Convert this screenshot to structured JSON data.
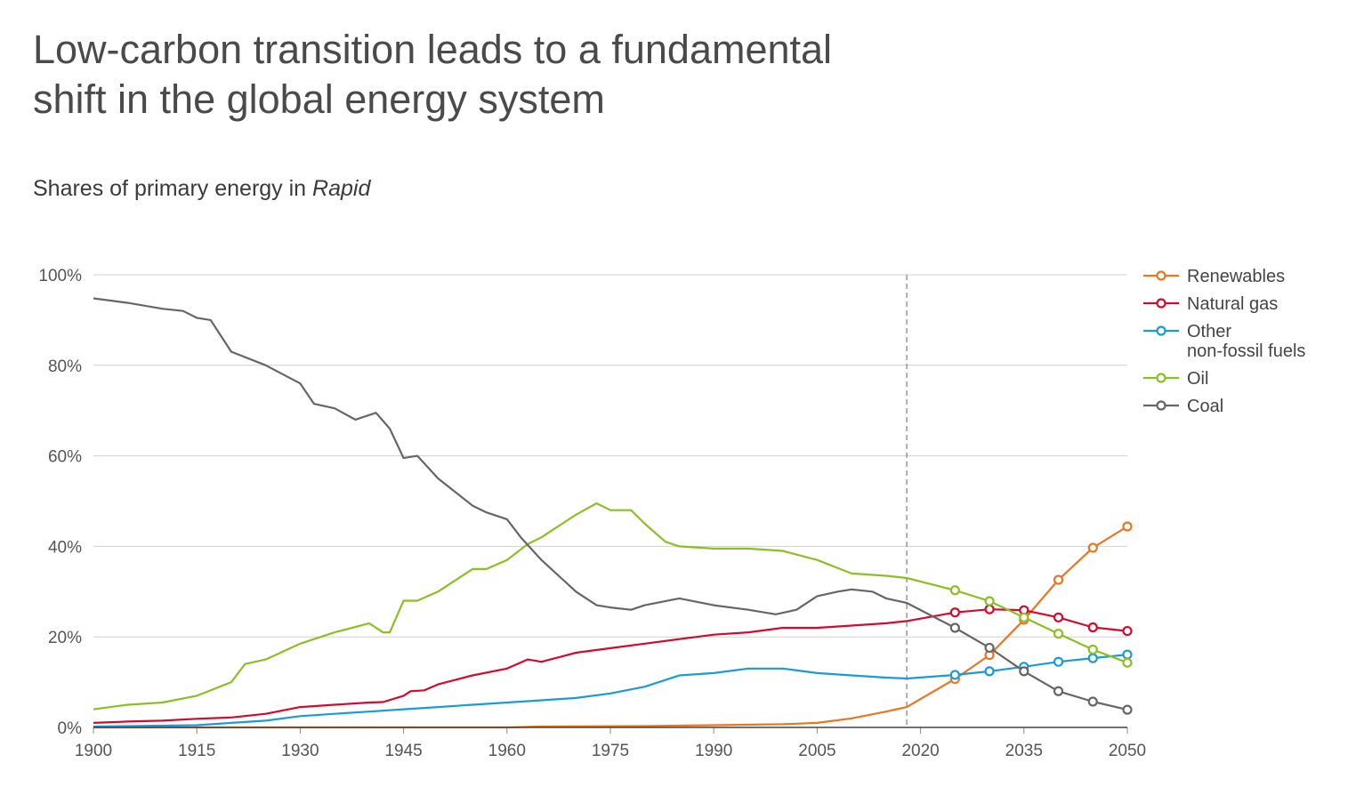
{
  "title": {
    "line1": "Low-carbon transition leads to a fundamental",
    "line2": "shift in the global energy system"
  },
  "subtitle": {
    "text": "Shares of primary energy in ",
    "italic": "Rapid"
  },
  "chart_data": {
    "type": "line",
    "xlim": [
      1900,
      2050
    ],
    "ylim": [
      0,
      100
    ],
    "x_ticks": [
      "1900",
      "1915",
      "1930",
      "1945",
      "1960",
      "1975",
      "1990",
      "2005",
      "2020",
      "2035",
      "2050"
    ],
    "y_ticks": [
      "0%",
      "20%",
      "40%",
      "60%",
      "80%",
      "100%"
    ],
    "grid": true,
    "legend_position": "right",
    "reference_line_x": 2018,
    "projection_markers_x": [
      2025,
      2030,
      2035,
      2040,
      2045,
      2050
    ],
    "series": [
      {
        "name": "Renewables",
        "legend": [
          "Renewables"
        ],
        "color": "#e87722",
        "points": [
          [
            1900,
            0
          ],
          [
            1960,
            0
          ],
          [
            1965,
            0.2
          ],
          [
            1980,
            0.3
          ],
          [
            1990,
            0.5
          ],
          [
            2000,
            0.7
          ],
          [
            2005,
            1
          ],
          [
            2010,
            2
          ],
          [
            2015,
            3.5
          ],
          [
            2018,
            4.5
          ],
          [
            2025,
            10.7
          ],
          [
            2030,
            16
          ],
          [
            2035,
            23.8
          ],
          [
            2040,
            32.6
          ],
          [
            2045,
            39.7
          ],
          [
            2050,
            44.4
          ]
        ]
      },
      {
        "name": "Natural gas",
        "legend": [
          "Natural gas"
        ],
        "color": "#d10a2e",
        "points": [
          [
            1900,
            1
          ],
          [
            1905,
            1.3
          ],
          [
            1910,
            1.5
          ],
          [
            1915,
            1.9
          ],
          [
            1920,
            2.2
          ],
          [
            1925,
            3
          ],
          [
            1930,
            4.5
          ],
          [
            1935,
            5
          ],
          [
            1940,
            5.5
          ],
          [
            1942,
            5.6
          ],
          [
            1945,
            7
          ],
          [
            1946,
            8
          ],
          [
            1948,
            8.2
          ],
          [
            1950,
            9.5
          ],
          [
            1955,
            11.5
          ],
          [
            1960,
            13
          ],
          [
            1963,
            15
          ],
          [
            1965,
            14.5
          ],
          [
            1970,
            16.5
          ],
          [
            1975,
            17.5
          ],
          [
            1980,
            18.5
          ],
          [
            1985,
            19.5
          ],
          [
            1990,
            20.5
          ],
          [
            1995,
            21
          ],
          [
            2000,
            22
          ],
          [
            2005,
            22
          ],
          [
            2010,
            22.5
          ],
          [
            2015,
            23
          ],
          [
            2018,
            23.5
          ],
          [
            2025,
            25.4
          ],
          [
            2030,
            26.1
          ],
          [
            2035,
            25.9
          ],
          [
            2040,
            24.3
          ],
          [
            2045,
            22.1
          ],
          [
            2050,
            21.3
          ]
        ]
      },
      {
        "name": "Other non-fossil fuels",
        "legend": [
          "Other",
          "non-fossil fuels"
        ],
        "color": "#1c9ad6",
        "points": [
          [
            1900,
            0.2
          ],
          [
            1915,
            0.5
          ],
          [
            1920,
            1
          ],
          [
            1925,
            1.5
          ],
          [
            1930,
            2.5
          ],
          [
            1935,
            3
          ],
          [
            1940,
            3.5
          ],
          [
            1945,
            4
          ],
          [
            1950,
            4.5
          ],
          [
            1955,
            5
          ],
          [
            1960,
            5.5
          ],
          [
            1965,
            6
          ],
          [
            1970,
            6.5
          ],
          [
            1975,
            7.5
          ],
          [
            1980,
            9
          ],
          [
            1985,
            11.5
          ],
          [
            1990,
            12
          ],
          [
            1995,
            13
          ],
          [
            2000,
            13
          ],
          [
            2005,
            12
          ],
          [
            2010,
            11.5
          ],
          [
            2015,
            11
          ],
          [
            2018,
            10.8
          ],
          [
            2025,
            11.6
          ],
          [
            2030,
            12.4
          ],
          [
            2035,
            13.4
          ],
          [
            2040,
            14.5
          ],
          [
            2045,
            15.3
          ],
          [
            2050,
            16.1
          ]
        ]
      },
      {
        "name": "Oil",
        "legend": [
          "Oil"
        ],
        "color": "#8cbf26",
        "points": [
          [
            1900,
            4
          ],
          [
            1905,
            5
          ],
          [
            1910,
            5.5
          ],
          [
            1915,
            7
          ],
          [
            1920,
            10
          ],
          [
            1922,
            14
          ],
          [
            1925,
            15
          ],
          [
            1930,
            18.5
          ],
          [
            1935,
            21
          ],
          [
            1940,
            23
          ],
          [
            1942,
            21
          ],
          [
            1943,
            21
          ],
          [
            1945,
            28
          ],
          [
            1947,
            28
          ],
          [
            1950,
            30
          ],
          [
            1955,
            35
          ],
          [
            1957,
            35
          ],
          [
            1960,
            37
          ],
          [
            1963,
            40.5
          ],
          [
            1965,
            42
          ],
          [
            1970,
            47
          ],
          [
            1973,
            49.5
          ],
          [
            1975,
            48
          ],
          [
            1978,
            48
          ],
          [
            1980,
            45
          ],
          [
            1983,
            41
          ],
          [
            1985,
            40
          ],
          [
            1990,
            39.5
          ],
          [
            1995,
            39.5
          ],
          [
            2000,
            39
          ],
          [
            2005,
            37
          ],
          [
            2010,
            34
          ],
          [
            2015,
            33.5
          ],
          [
            2018,
            33
          ],
          [
            2025,
            30.3
          ],
          [
            2030,
            27.9
          ],
          [
            2035,
            24.3
          ],
          [
            2040,
            20.7
          ],
          [
            2045,
            17.2
          ],
          [
            2050,
            14.3
          ]
        ]
      },
      {
        "name": "Coal",
        "legend": [
          "Coal"
        ],
        "color": "#666666",
        "points": [
          [
            1900,
            94.8
          ],
          [
            1905,
            93.8
          ],
          [
            1910,
            92.5
          ],
          [
            1913,
            92
          ],
          [
            1915,
            90.5
          ],
          [
            1917,
            90
          ],
          [
            1920,
            83
          ],
          [
            1925,
            80
          ],
          [
            1930,
            76
          ],
          [
            1932,
            71.5
          ],
          [
            1935,
            70.5
          ],
          [
            1938,
            68
          ],
          [
            1941,
            69.5
          ],
          [
            1943,
            66
          ],
          [
            1945,
            59.5
          ],
          [
            1947,
            60
          ],
          [
            1950,
            55
          ],
          [
            1955,
            49
          ],
          [
            1957,
            47.5
          ],
          [
            1960,
            46
          ],
          [
            1962,
            42
          ],
          [
            1965,
            37
          ],
          [
            1970,
            30
          ],
          [
            1973,
            27
          ],
          [
            1975,
            26.5
          ],
          [
            1978,
            26
          ],
          [
            1980,
            27
          ],
          [
            1985,
            28.5
          ],
          [
            1990,
            27
          ],
          [
            1995,
            26
          ],
          [
            1999,
            25
          ],
          [
            2002,
            26
          ],
          [
            2005,
            29
          ],
          [
            2008,
            30
          ],
          [
            2010,
            30.5
          ],
          [
            2013,
            30
          ],
          [
            2015,
            28.5
          ],
          [
            2018,
            27.5
          ],
          [
            2025,
            22
          ],
          [
            2030,
            17.6
          ],
          [
            2035,
            12.4
          ],
          [
            2040,
            8
          ],
          [
            2045,
            5.7
          ],
          [
            2050,
            3.9
          ]
        ]
      }
    ]
  }
}
